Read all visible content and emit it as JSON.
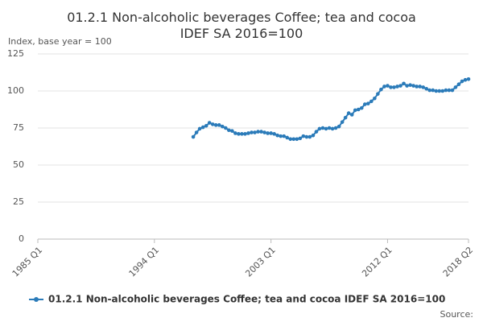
{
  "chart_data": {
    "type": "line",
    "title": "01.2.1 Non-alcoholic beverages Coffee; tea and cocoa IDEF SA 2016=100",
    "y_axis_label": "Index, base year = 100",
    "source": "Source:",
    "categories": [
      "1985 Q1",
      null,
      null,
      null,
      null,
      null,
      null,
      null,
      null,
      null,
      null,
      null,
      null,
      null,
      null,
      null,
      null,
      null,
      null,
      null,
      null,
      null,
      null,
      null,
      null,
      null,
      null,
      null,
      null,
      null,
      null,
      null,
      null,
      null,
      null,
      null,
      "1994 Q1",
      null,
      null,
      null,
      null,
      null,
      null,
      null,
      null,
      null,
      null,
      null,
      null,
      null,
      null,
      null,
      null,
      null,
      null,
      null,
      null,
      null,
      null,
      null,
      null,
      null,
      null,
      null,
      null,
      null,
      null,
      null,
      null,
      null,
      null,
      null,
      "2003 Q1",
      null,
      null,
      null,
      null,
      null,
      null,
      null,
      null,
      null,
      null,
      null,
      null,
      null,
      null,
      null,
      null,
      null,
      null,
      null,
      null,
      null,
      null,
      null,
      null,
      null,
      null,
      null,
      null,
      null,
      null,
      null,
      null,
      null,
      null,
      null,
      "2012 Q1",
      null,
      null,
      null,
      null,
      null,
      null,
      null,
      null,
      null,
      null,
      null,
      null,
      null,
      null,
      null,
      null,
      null,
      null,
      null,
      null,
      null,
      null,
      null,
      null,
      "2018 Q2"
    ],
    "series": [
      {
        "name": "01.2.1 Non-alcoholic beverages Coffee; tea and cocoa IDEF SA 2016=100",
        "color": "#2b7bb9",
        "values": [
          null,
          null,
          null,
          null,
          null,
          null,
          null,
          null,
          null,
          null,
          null,
          null,
          null,
          null,
          null,
          null,
          null,
          null,
          null,
          null,
          null,
          null,
          null,
          null,
          null,
          null,
          null,
          null,
          null,
          null,
          null,
          null,
          null,
          null,
          null,
          null,
          null,
          null,
          null,
          null,
          null,
          null,
          null,
          null,
          null,
          null,
          null,
          null,
          69,
          72,
          74.5,
          75.5,
          76.5,
          78.5,
          77.5,
          77,
          77,
          76,
          75,
          73.5,
          73,
          71.5,
          71,
          71,
          71,
          71.5,
          72,
          72,
          72.5,
          72.5,
          72,
          71.5,
          71.5,
          71,
          70,
          69.5,
          69.5,
          68.5,
          67.5,
          67.5,
          67.5,
          68,
          69.5,
          69,
          69,
          70,
          72.5,
          74.5,
          75,
          74.5,
          75,
          74.5,
          75,
          76,
          79,
          82,
          85,
          84,
          87,
          87.5,
          88.5,
          91,
          91.5,
          93,
          95,
          98,
          101,
          103,
          103.5,
          102.5,
          102.5,
          103,
          103.5,
          105,
          103.5,
          104,
          103.5,
          103,
          103,
          102.5,
          101.5,
          100.5,
          100.5,
          100,
          100,
          100,
          100.5,
          100.5,
          100.5,
          102.5,
          104.5,
          106.5,
          107.5,
          108
        ]
      }
    ],
    "ylim": [
      0,
      125
    ],
    "yticks": [
      0,
      25,
      50,
      75,
      100,
      125
    ],
    "grid": true
  }
}
